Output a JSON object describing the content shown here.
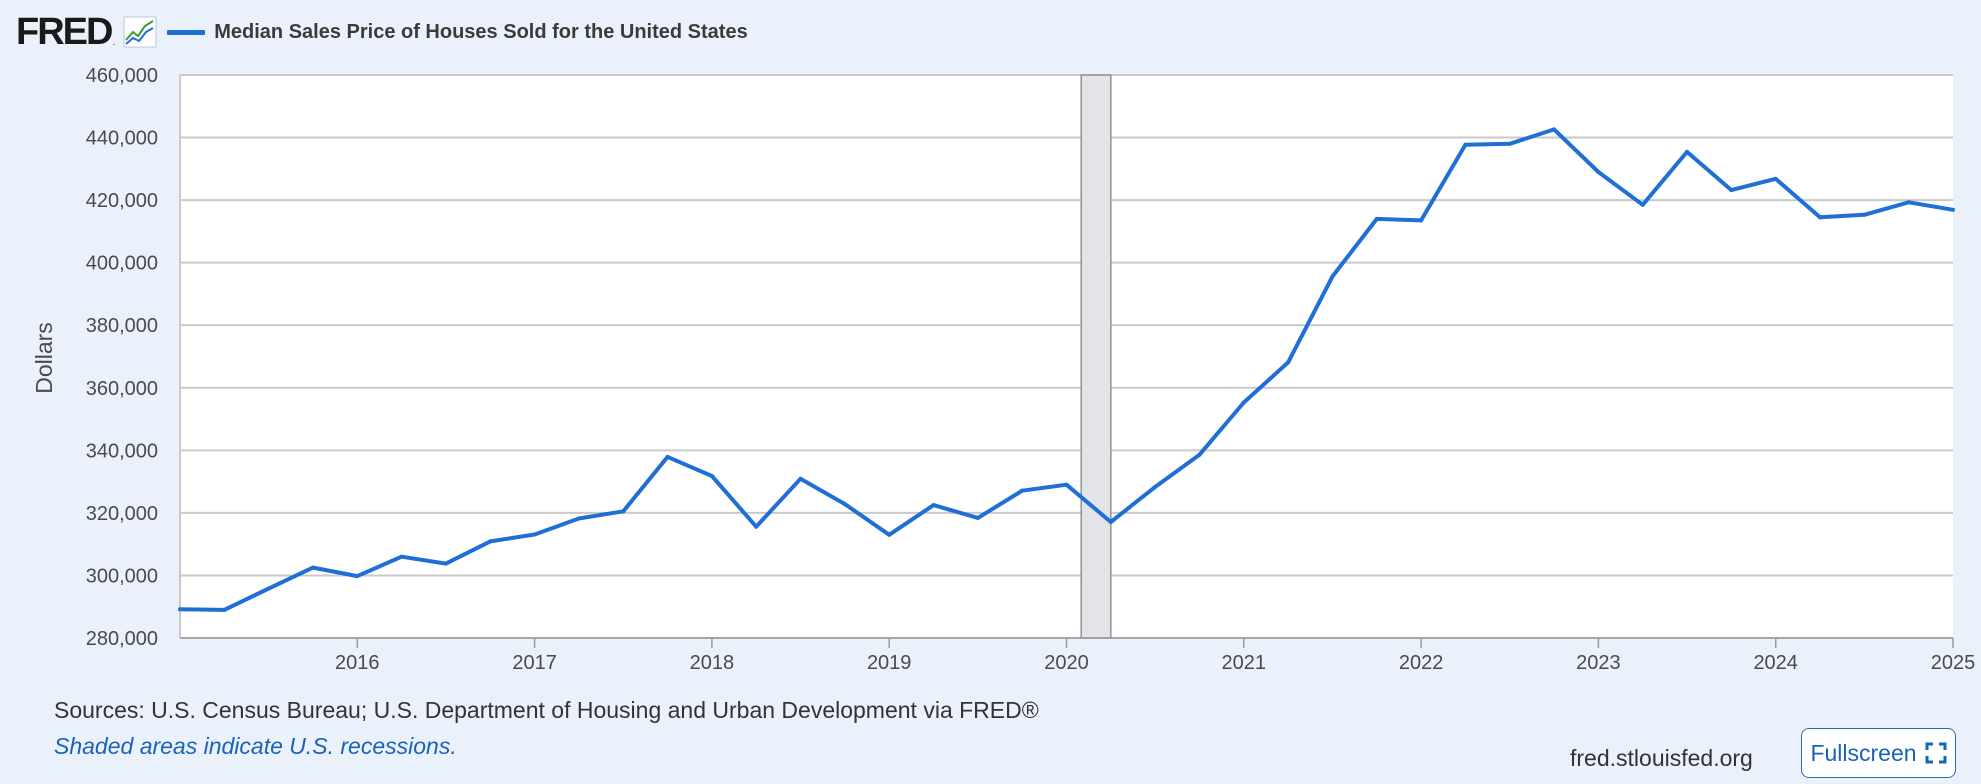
{
  "header": {
    "logo_text": "FRED",
    "logo_reg": ".",
    "legend_color": "#1f6fd6"
  },
  "chart_data": {
    "type": "line",
    "title": "",
    "ylabel": "Dollars",
    "xlabel": "",
    "ylim": [
      280000,
      460000
    ],
    "yticks": [
      "460,000",
      "440,000",
      "420,000",
      "400,000",
      "380,000",
      "360,000",
      "340,000",
      "320,000",
      "300,000",
      "280,000"
    ],
    "ytick_values": [
      460000,
      440000,
      420000,
      400000,
      380000,
      360000,
      340000,
      320000,
      300000,
      280000
    ],
    "xlim": [
      2015.0,
      2025.0
    ],
    "xticks": [
      "2016",
      "2017",
      "2018",
      "2019",
      "2020",
      "2021",
      "2022",
      "2023",
      "2024",
      "2025"
    ],
    "xtick_values": [
      2016,
      2017,
      2018,
      2019,
      2020,
      2021,
      2022,
      2023,
      2024,
      2025
    ],
    "grid": true,
    "recession": {
      "start": 2020.083,
      "end": 2020.25
    },
    "series": [
      {
        "name": "Median Sales Price of Houses Sold for the United States",
        "color": "#1f6fd6",
        "x": [
          2015.0,
          2015.25,
          2015.5,
          2015.75,
          2016.0,
          2016.25,
          2016.5,
          2016.75,
          2017.0,
          2017.25,
          2017.5,
          2017.75,
          2018.0,
          2018.25,
          2018.5,
          2018.75,
          2019.0,
          2019.25,
          2019.5,
          2019.75,
          2020.0,
          2020.25,
          2020.5,
          2020.75,
          2021.0,
          2021.25,
          2021.5,
          2021.75,
          2022.0,
          2022.25,
          2022.5,
          2022.75,
          2023.0,
          2023.25,
          2023.5,
          2023.75,
          2024.0,
          2024.25,
          2024.5,
          2024.75,
          2025.0
        ],
        "values": [
          289200,
          289000,
          295800,
          302500,
          299800,
          306000,
          303800,
          310900,
          313100,
          318200,
          320500,
          337900,
          331800,
          315600,
          330900,
          322800,
          313000,
          322500,
          318400,
          327100,
          329000,
          317100,
          328300,
          338600,
          355300,
          368100,
          395600,
          414000,
          413500,
          437700,
          438000,
          442600,
          429000,
          418500,
          435400,
          423200,
          426800,
          414500,
          415300,
          419300,
          416900
        ]
      }
    ]
  },
  "footer": {
    "sources": "Sources: U.S. Census Bureau; U.S. Department of Housing and Urban Development via FRED®",
    "note": "Shaded areas indicate U.S. recessions.",
    "site": "fred.stlouisfed.org",
    "fullscreen_label": "Fullscreen"
  }
}
